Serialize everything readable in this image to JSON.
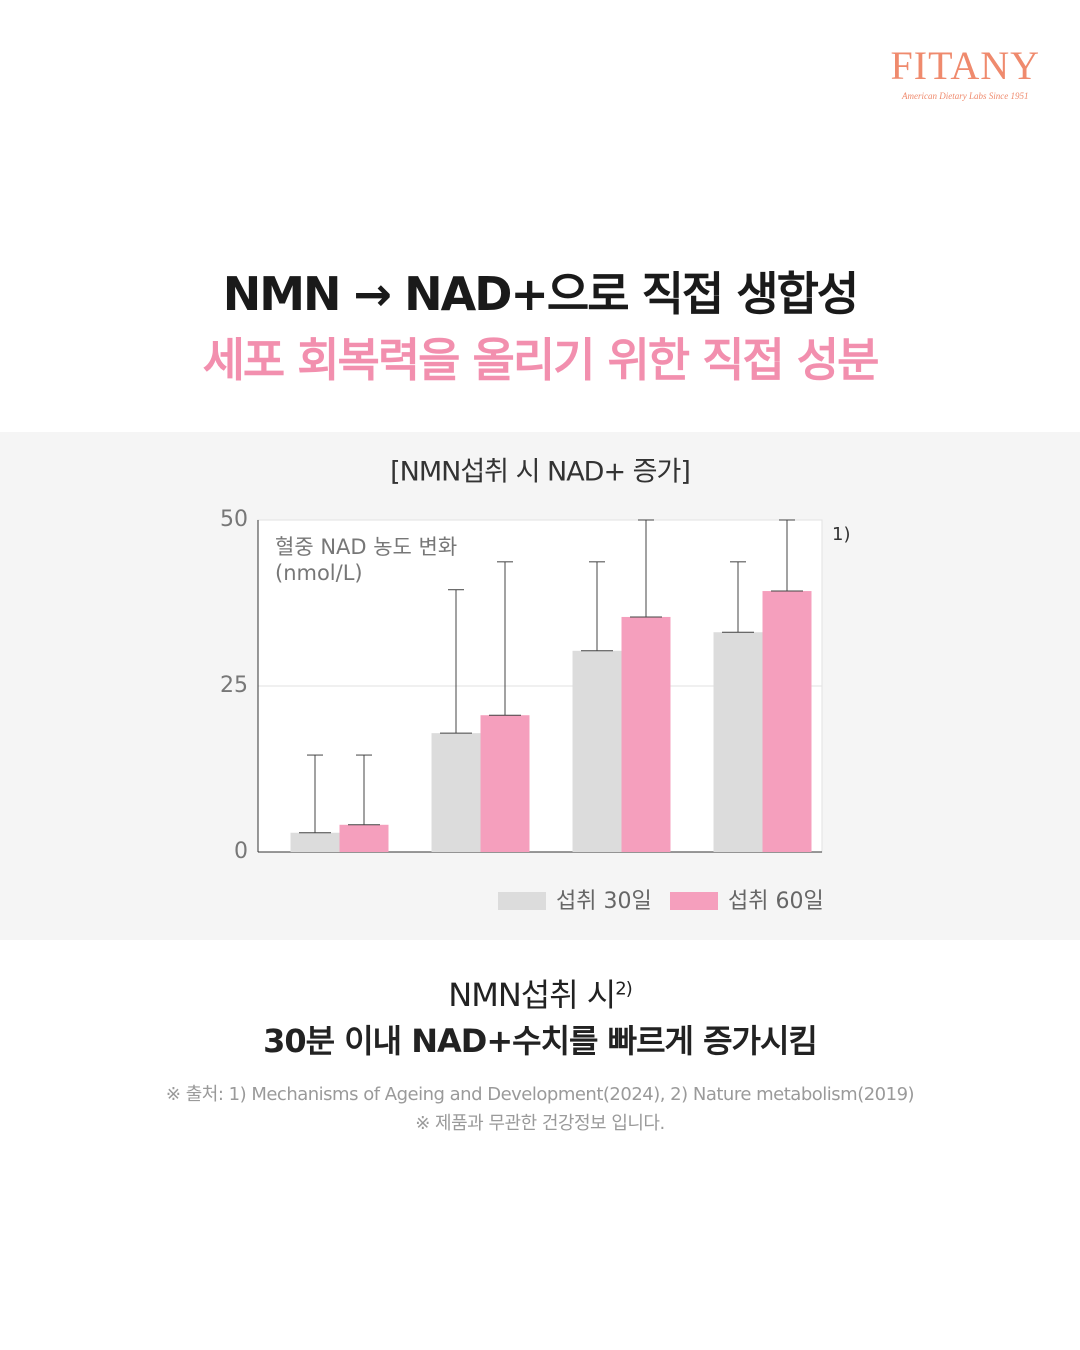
{
  "logo": {
    "name": "FITANY",
    "tagline": "American Dietary Labs Since 1951"
  },
  "headline": {
    "line1": "NMN → NAD+으로 직접 생합성",
    "line2": "세포 회복력을 올리기 위한 직접 성분"
  },
  "chart_data": {
    "type": "bar",
    "title": "[NMN섭취 시 NAD+ 증가]",
    "y_label": [
      "혈중 NAD 농도 변화",
      "(nmol/L)"
    ],
    "annotation": "1)",
    "categories": [
      null,
      null,
      null,
      null
    ],
    "series": [
      {
        "name": "섭취 30일",
        "color": "#dcdcdc",
        "values": [
          2.9,
          17.9,
          30.3,
          33.1
        ],
        "errors": [
          11.7,
          21.6,
          13.4,
          10.6
        ]
      },
      {
        "name": "섭취 60일",
        "color": "#f59fbd",
        "values": [
          4.1,
          20.6,
          35.4,
          39.3
        ],
        "errors": [
          10.5,
          23.1,
          14.6,
          10.7
        ]
      }
    ],
    "ylim": [
      0,
      50
    ],
    "yticks": [
      0,
      25,
      50
    ],
    "grid": true
  },
  "summary": {
    "line1": "NMN섭취 시",
    "line1_note": "2)",
    "line2": "30분 이내 NAD+수치를 빠르게 증가시킴"
  },
  "footnotes": [
    "※ 출처: 1) Mechanisms of Ageing and Development(2024), 2) Nature metabolism(2019)",
    "※ 제품과 무관한 건강정보 입니다."
  ]
}
